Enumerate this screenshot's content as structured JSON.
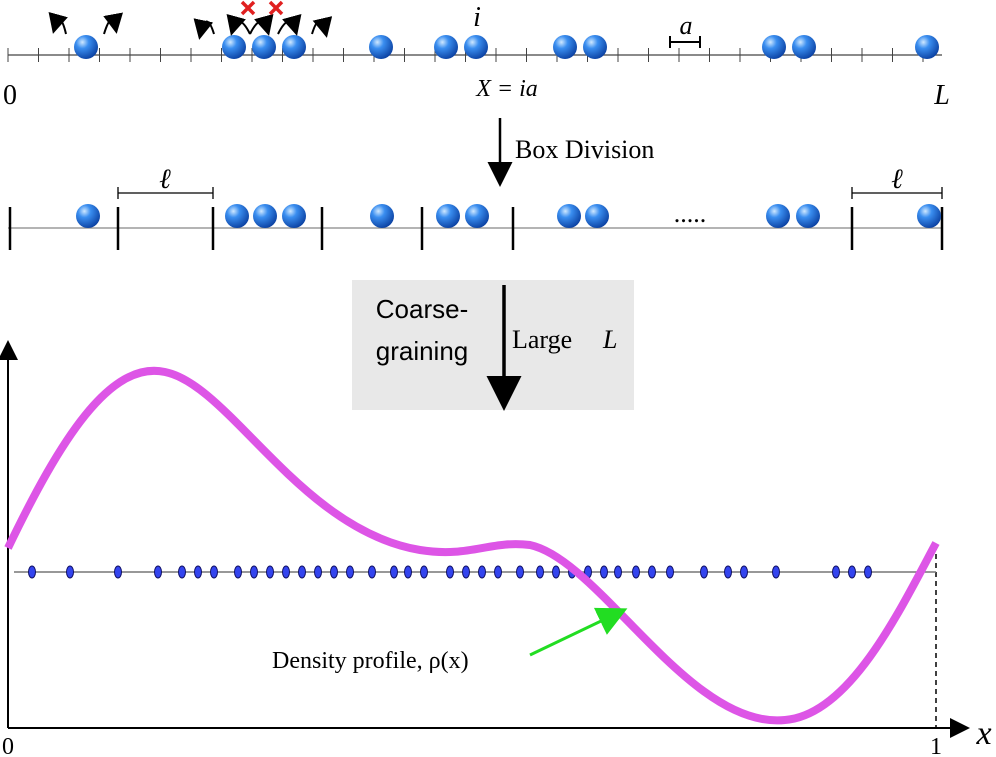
{
  "lattice": {
    "origin": "0",
    "site": "i",
    "spacing": "a",
    "position": "X = ia",
    "end": "L"
  },
  "step1": "Box Division",
  "boxes": {
    "box_length_left": "ℓ",
    "box_length_right": "ℓ",
    "ellipsis": "....."
  },
  "step2": {
    "left_line1": "Coarse-",
    "left_line2": "graining",
    "right": "Large",
    "right_var": "L"
  },
  "plot": {
    "x_origin": "0",
    "x_end": "1",
    "x_label": "x",
    "annotation": "Density profile, ρ(x)"
  }
}
